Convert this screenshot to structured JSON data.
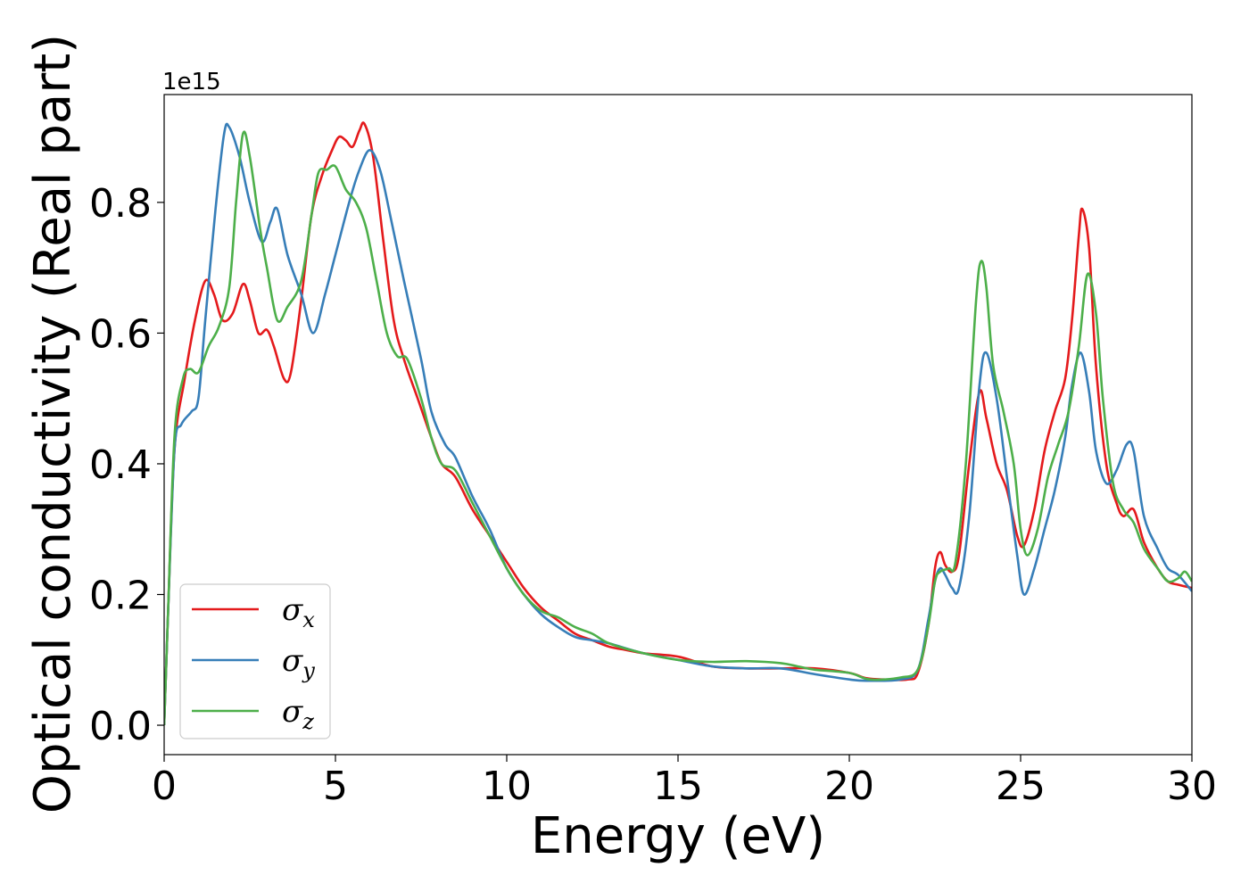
{
  "chart_data": {
    "type": "line",
    "xlabel": "Energy (eV)",
    "ylabel": "Optical conductivity (Real part)",
    "y_offset_label": "1e15",
    "xlim": [
      0,
      30
    ],
    "ylim": [
      -0.045,
      0.965
    ],
    "xticks": [
      0,
      5,
      10,
      15,
      20,
      25,
      30
    ],
    "xtick_labels": [
      "0",
      "5",
      "10",
      "15",
      "20",
      "25",
      "30"
    ],
    "yticks": [
      0.0,
      0.2,
      0.4,
      0.6,
      0.8
    ],
    "ytick_labels": [
      "0.0",
      "0.2",
      "0.4",
      "0.6",
      "0.8"
    ],
    "grid": false,
    "legend_position": "lower-left",
    "series": [
      {
        "name": "σx",
        "sym": "σ",
        "sub": "x",
        "color": "#e41a1c",
        "points": [
          [
            0,
            0
          ],
          [
            0.1,
            0.15
          ],
          [
            0.3,
            0.42
          ],
          [
            0.6,
            0.53
          ],
          [
            0.9,
            0.62
          ],
          [
            1.2,
            0.68
          ],
          [
            1.45,
            0.66
          ],
          [
            1.7,
            0.62
          ],
          [
            2.0,
            0.63
          ],
          [
            2.3,
            0.675
          ],
          [
            2.5,
            0.65
          ],
          [
            2.75,
            0.6
          ],
          [
            3.0,
            0.605
          ],
          [
            3.2,
            0.58
          ],
          [
            3.5,
            0.53
          ],
          [
            3.7,
            0.54
          ],
          [
            4.0,
            0.65
          ],
          [
            4.3,
            0.78
          ],
          [
            4.6,
            0.84
          ],
          [
            4.9,
            0.88
          ],
          [
            5.1,
            0.9
          ],
          [
            5.3,
            0.895
          ],
          [
            5.5,
            0.885
          ],
          [
            5.7,
            0.91
          ],
          [
            5.85,
            0.92
          ],
          [
            6.1,
            0.87
          ],
          [
            6.4,
            0.74
          ],
          [
            6.7,
            0.62
          ],
          [
            7.0,
            0.56
          ],
          [
            7.4,
            0.5
          ],
          [
            7.8,
            0.44
          ],
          [
            8.1,
            0.4
          ],
          [
            8.5,
            0.38
          ],
          [
            9.0,
            0.33
          ],
          [
            9.5,
            0.29
          ],
          [
            10.0,
            0.25
          ],
          [
            10.5,
            0.21
          ],
          [
            11.0,
            0.18
          ],
          [
            11.5,
            0.16
          ],
          [
            12.0,
            0.14
          ],
          [
            12.5,
            0.13
          ],
          [
            13.0,
            0.12
          ],
          [
            13.5,
            0.115
          ],
          [
            14.0,
            0.11
          ],
          [
            15.0,
            0.105
          ],
          [
            16.0,
            0.09
          ],
          [
            17.0,
            0.087
          ],
          [
            18.0,
            0.087
          ],
          [
            19.0,
            0.087
          ],
          [
            20.0,
            0.08
          ],
          [
            20.5,
            0.072
          ],
          [
            21.0,
            0.07
          ],
          [
            21.7,
            0.07
          ],
          [
            22.0,
            0.08
          ],
          [
            22.3,
            0.15
          ],
          [
            22.5,
            0.24
          ],
          [
            22.65,
            0.265
          ],
          [
            22.8,
            0.245
          ],
          [
            23.0,
            0.235
          ],
          [
            23.2,
            0.26
          ],
          [
            23.5,
            0.4
          ],
          [
            23.8,
            0.51
          ],
          [
            24.0,
            0.47
          ],
          [
            24.3,
            0.4
          ],
          [
            24.6,
            0.36
          ],
          [
            24.9,
            0.29
          ],
          [
            25.1,
            0.275
          ],
          [
            25.4,
            0.33
          ],
          [
            25.7,
            0.42
          ],
          [
            26.0,
            0.48
          ],
          [
            26.3,
            0.53
          ],
          [
            26.5,
            0.62
          ],
          [
            26.7,
            0.75
          ],
          [
            26.8,
            0.79
          ],
          [
            27.0,
            0.73
          ],
          [
            27.2,
            0.55
          ],
          [
            27.5,
            0.4
          ],
          [
            27.8,
            0.34
          ],
          [
            28.0,
            0.32
          ],
          [
            28.3,
            0.33
          ],
          [
            28.6,
            0.28
          ],
          [
            29.0,
            0.24
          ],
          [
            29.3,
            0.22
          ],
          [
            29.6,
            0.215
          ],
          [
            30.0,
            0.21
          ]
        ]
      },
      {
        "name": "σy",
        "sym": "σ",
        "sub": "y",
        "color": "#377eb8",
        "points": [
          [
            0,
            0
          ],
          [
            0.1,
            0.15
          ],
          [
            0.3,
            0.42
          ],
          [
            0.5,
            0.46
          ],
          [
            0.8,
            0.48
          ],
          [
            1.0,
            0.5
          ],
          [
            1.2,
            0.62
          ],
          [
            1.5,
            0.79
          ],
          [
            1.75,
            0.905
          ],
          [
            1.9,
            0.915
          ],
          [
            2.2,
            0.87
          ],
          [
            2.5,
            0.8
          ],
          [
            2.85,
            0.74
          ],
          [
            3.1,
            0.77
          ],
          [
            3.3,
            0.79
          ],
          [
            3.6,
            0.72
          ],
          [
            4.0,
            0.66
          ],
          [
            4.35,
            0.6
          ],
          [
            4.7,
            0.66
          ],
          [
            5.0,
            0.72
          ],
          [
            5.4,
            0.8
          ],
          [
            5.7,
            0.85
          ],
          [
            6.0,
            0.88
          ],
          [
            6.3,
            0.85
          ],
          [
            6.6,
            0.78
          ],
          [
            7.0,
            0.68
          ],
          [
            7.5,
            0.56
          ],
          [
            7.8,
            0.48
          ],
          [
            8.2,
            0.43
          ],
          [
            8.5,
            0.41
          ],
          [
            9.0,
            0.35
          ],
          [
            9.5,
            0.3
          ],
          [
            10.0,
            0.24
          ],
          [
            10.5,
            0.2
          ],
          [
            11.0,
            0.17
          ],
          [
            11.5,
            0.15
          ],
          [
            12.0,
            0.135
          ],
          [
            12.5,
            0.13
          ],
          [
            13.0,
            0.125
          ],
          [
            14.0,
            0.11
          ],
          [
            15.0,
            0.1
          ],
          [
            16.0,
            0.09
          ],
          [
            17.0,
            0.087
          ],
          [
            18.0,
            0.087
          ],
          [
            19.0,
            0.078
          ],
          [
            20.0,
            0.07
          ],
          [
            20.5,
            0.068
          ],
          [
            21.5,
            0.07
          ],
          [
            22.0,
            0.085
          ],
          [
            22.3,
            0.16
          ],
          [
            22.5,
            0.22
          ],
          [
            22.65,
            0.24
          ],
          [
            22.8,
            0.23
          ],
          [
            23.0,
            0.21
          ],
          [
            23.2,
            0.21
          ],
          [
            23.5,
            0.32
          ],
          [
            23.8,
            0.52
          ],
          [
            24.0,
            0.57
          ],
          [
            24.3,
            0.5
          ],
          [
            24.6,
            0.38
          ],
          [
            24.9,
            0.26
          ],
          [
            25.1,
            0.2
          ],
          [
            25.4,
            0.24
          ],
          [
            25.7,
            0.3
          ],
          [
            26.0,
            0.36
          ],
          [
            26.3,
            0.44
          ],
          [
            26.5,
            0.52
          ],
          [
            26.75,
            0.57
          ],
          [
            27.0,
            0.51
          ],
          [
            27.2,
            0.42
          ],
          [
            27.5,
            0.37
          ],
          [
            27.8,
            0.39
          ],
          [
            28.1,
            0.43
          ],
          [
            28.3,
            0.42
          ],
          [
            28.6,
            0.32
          ],
          [
            29.0,
            0.27
          ],
          [
            29.3,
            0.24
          ],
          [
            29.6,
            0.23
          ],
          [
            30.0,
            0.205
          ]
        ]
      },
      {
        "name": "σz",
        "sym": "σ",
        "sub": "z",
        "color": "#4daf4a",
        "points": [
          [
            0,
            0
          ],
          [
            0.1,
            0.15
          ],
          [
            0.3,
            0.44
          ],
          [
            0.55,
            0.53
          ],
          [
            0.75,
            0.545
          ],
          [
            1.0,
            0.54
          ],
          [
            1.3,
            0.58
          ],
          [
            1.6,
            0.61
          ],
          [
            1.9,
            0.67
          ],
          [
            2.1,
            0.8
          ],
          [
            2.3,
            0.905
          ],
          [
            2.5,
            0.87
          ],
          [
            2.8,
            0.76
          ],
          [
            3.0,
            0.7
          ],
          [
            3.3,
            0.62
          ],
          [
            3.6,
            0.64
          ],
          [
            4.0,
            0.68
          ],
          [
            4.3,
            0.78
          ],
          [
            4.5,
            0.845
          ],
          [
            4.75,
            0.85
          ],
          [
            5.0,
            0.855
          ],
          [
            5.3,
            0.82
          ],
          [
            5.6,
            0.8
          ],
          [
            5.9,
            0.76
          ],
          [
            6.2,
            0.68
          ],
          [
            6.5,
            0.6
          ],
          [
            6.8,
            0.565
          ],
          [
            7.1,
            0.56
          ],
          [
            7.5,
            0.5
          ],
          [
            7.8,
            0.44
          ],
          [
            8.1,
            0.4
          ],
          [
            8.5,
            0.39
          ],
          [
            9.0,
            0.34
          ],
          [
            9.5,
            0.29
          ],
          [
            10.0,
            0.24
          ],
          [
            10.5,
            0.2
          ],
          [
            11.0,
            0.175
          ],
          [
            11.5,
            0.165
          ],
          [
            12.0,
            0.15
          ],
          [
            12.5,
            0.14
          ],
          [
            13.0,
            0.125
          ],
          [
            14.0,
            0.11
          ],
          [
            15.0,
            0.1
          ],
          [
            16.0,
            0.097
          ],
          [
            17.0,
            0.098
          ],
          [
            18.0,
            0.095
          ],
          [
            18.5,
            0.09
          ],
          [
            19.0,
            0.085
          ],
          [
            20.0,
            0.08
          ],
          [
            20.6,
            0.07
          ],
          [
            21.5,
            0.073
          ],
          [
            22.0,
            0.085
          ],
          [
            22.3,
            0.15
          ],
          [
            22.5,
            0.22
          ],
          [
            22.65,
            0.235
          ],
          [
            22.9,
            0.24
          ],
          [
            23.1,
            0.25
          ],
          [
            23.4,
            0.4
          ],
          [
            23.7,
            0.65
          ],
          [
            23.85,
            0.71
          ],
          [
            24.0,
            0.67
          ],
          [
            24.2,
            0.55
          ],
          [
            24.5,
            0.48
          ],
          [
            24.8,
            0.4
          ],
          [
            25.0,
            0.3
          ],
          [
            25.2,
            0.26
          ],
          [
            25.5,
            0.3
          ],
          [
            25.8,
            0.38
          ],
          [
            26.1,
            0.43
          ],
          [
            26.4,
            0.48
          ],
          [
            26.7,
            0.58
          ],
          [
            26.95,
            0.69
          ],
          [
            27.2,
            0.63
          ],
          [
            27.4,
            0.5
          ],
          [
            27.7,
            0.37
          ],
          [
            28.0,
            0.33
          ],
          [
            28.3,
            0.31
          ],
          [
            28.6,
            0.27
          ],
          [
            29.0,
            0.24
          ],
          [
            29.3,
            0.22
          ],
          [
            29.6,
            0.225
          ],
          [
            29.8,
            0.235
          ],
          [
            30.0,
            0.22
          ]
        ]
      }
    ]
  }
}
